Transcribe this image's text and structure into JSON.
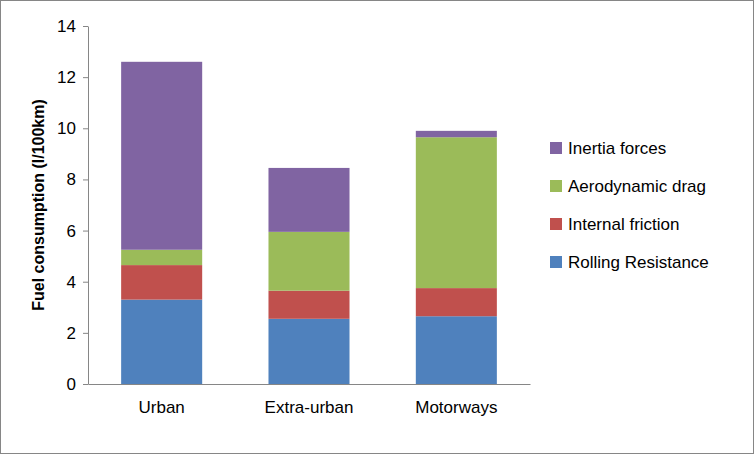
{
  "chart_data": {
    "type": "bar",
    "stacked": true,
    "grid": false,
    "legend": "right",
    "y_label": "Fuel consumption (l/100km)",
    "categories": [
      "Urban",
      "Extra-urban",
      "Motorways"
    ],
    "series": [
      {
        "name": "Rolling Resistance",
        "color": "#4f81bd",
        "values": [
          3.3,
          2.55,
          2.65
        ]
      },
      {
        "name": "Internal friction",
        "color": "#c0504d",
        "values": [
          1.35,
          1.1,
          1.1
        ]
      },
      {
        "name": "Aerodynamic drag",
        "color": "#9bbb59",
        "values": [
          0.6,
          2.3,
          5.9
        ]
      },
      {
        "name": "Inertia forces",
        "color": "#8064a2",
        "values": [
          7.35,
          2.5,
          0.25
        ]
      }
    ],
    "ylim": [
      0,
      14
    ],
    "yticks": [
      0,
      2,
      4,
      6,
      8,
      10,
      12,
      14
    ]
  }
}
